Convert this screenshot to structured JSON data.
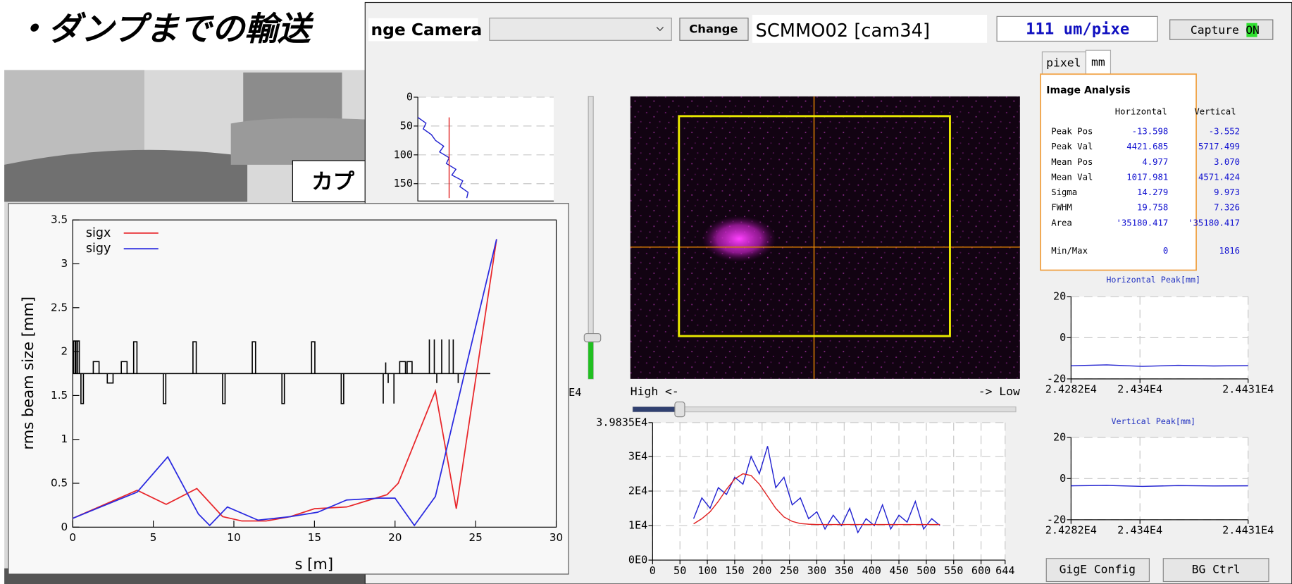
{
  "slide": {
    "title": "・ダンプまでの輸送",
    "label": "カプ"
  },
  "window": {
    "title": "nge Camera",
    "change": "Change",
    "camera": "SCMMO02 [cam34]",
    "scale": "111 um/pixe",
    "capture": "Capture",
    "capture_state": "ON",
    "tabs": [
      "pixel",
      "mm"
    ],
    "high": "High <-",
    "low": "-> Low",
    "fragment": "E4",
    "buttons": [
      "GigE Config",
      "BG Ctrl"
    ]
  },
  "analysis": {
    "title": "Image Analysis",
    "columns": [
      "Horizontal",
      "Vertical"
    ],
    "rows": [
      [
        "Peak Pos",
        "-13.598",
        "-3.552"
      ],
      [
        "Peak Val",
        "4421.685",
        "5717.499"
      ],
      [
        "Mean Pos",
        "4.977",
        "3.070"
      ],
      [
        "Mean Val",
        "1017.981",
        "4571.424"
      ],
      [
        "Sigma",
        "14.279",
        "9.973"
      ],
      [
        "FWHM",
        "19.758",
        "7.326"
      ],
      [
        "Area",
        "'35180.417",
        "'35180.417"
      ],
      [
        "Min/Max",
        "0",
        "1816"
      ]
    ]
  },
  "profile_v": {
    "type": "line",
    "orientation": "vertical",
    "y_reversed": true,
    "grid": true,
    "xlim": [
      0,
      100
    ],
    "ylim": [
      0,
      180
    ],
    "yticks": [
      0,
      50,
      100,
      150
    ],
    "y": [
      35,
      45,
      55,
      65,
      75,
      85,
      95,
      105,
      115,
      125,
      135,
      145,
      155,
      165,
      175
    ],
    "series": [
      {
        "color": "#2020d0",
        "values": [
          0,
          6,
          4,
          10,
          13,
          19,
          16,
          23,
          21,
          28,
          25,
          33,
          31,
          37,
          36
        ]
      },
      {
        "color": "#e02020",
        "values": [
          23,
          23,
          23,
          23,
          23,
          23,
          23,
          23,
          23,
          23,
          23,
          23,
          23,
          23,
          23
        ]
      }
    ]
  },
  "profile_h": {
    "type": "line",
    "grid": true,
    "xlim": [
      0,
      644
    ],
    "ylim": [
      0,
      39835
    ],
    "xticks": [
      0,
      50,
      100,
      150,
      200,
      250,
      300,
      350,
      400,
      450,
      500,
      550,
      600,
      644
    ],
    "yticks": [
      {
        "value": 0,
        "label": "0E0"
      },
      {
        "value": 10000,
        "label": "1E4"
      },
      {
        "value": 20000,
        "label": "2E4"
      },
      {
        "value": 30000,
        "label": "3E4"
      },
      {
        "value": 39835,
        "label": "3.9835E4"
      }
    ],
    "x": [
      75,
      90,
      105,
      120,
      135,
      150,
      165,
      180,
      195,
      210,
      225,
      240,
      255,
      270,
      285,
      300,
      315,
      330,
      345,
      360,
      375,
      390,
      405,
      420,
      435,
      450,
      465,
      480,
      495,
      510,
      525
    ],
    "series": [
      {
        "color": "#2020d0",
        "values": [
          12000,
          18000,
          15000,
          21000,
          19000,
          24000,
          22000,
          30000,
          25000,
          33000,
          21000,
          24000,
          16000,
          18000,
          12000,
          14000,
          9000,
          13000,
          10000,
          15000,
          8000,
          12000,
          10000,
          16000,
          9000,
          13000,
          11000,
          17000,
          9000,
          12000,
          10000
        ]
      },
      {
        "color": "#e02020",
        "values": [
          10500,
          12000,
          14000,
          17000,
          20500,
          23500,
          25000,
          24500,
          22000,
          18500,
          15000,
          12500,
          11200,
          10600,
          10400,
          10300,
          10300,
          10300,
          10300,
          10300,
          10300,
          10300,
          10300,
          10300,
          10300,
          10300,
          10300,
          10300,
          10300,
          10300,
          10300
        ]
      }
    ]
  },
  "peak_h": {
    "type": "line",
    "title": "Horizontal Peak[mm]",
    "grid": true,
    "xlim": [
      24282,
      24431
    ],
    "ylim": [
      -20,
      20
    ],
    "yticks": [
      20,
      0,
      -20
    ],
    "xticks": [
      {
        "value": 24282,
        "label": "2.4282E4"
      },
      {
        "value": 24340,
        "label": "2.434E4"
      },
      {
        "value": 24431,
        "label": "2.4431E4"
      }
    ],
    "x": [
      24282,
      24312,
      24342,
      24372,
      24402,
      24431
    ],
    "series": [
      {
        "color": "#2020d0",
        "values": [
          -13.6,
          -13.2,
          -13.9,
          -13.4,
          -13.7,
          -13.5
        ]
      }
    ]
  },
  "peak_v": {
    "type": "line",
    "title": "Vertical Peak[mm]",
    "grid": true,
    "xlim": [
      24282,
      24431
    ],
    "ylim": [
      -20,
      20
    ],
    "yticks": [
      20,
      0,
      -20
    ],
    "xticks": [
      {
        "value": 24282,
        "label": "2.4282E4"
      },
      {
        "value": 24340,
        "label": "2.434E4"
      },
      {
        "value": 24431,
        "label": "2.4431E4"
      }
    ],
    "x": [
      24282,
      24312,
      24342,
      24372,
      24402,
      24431
    ],
    "series": [
      {
        "color": "#2020d0",
        "values": [
          -3.5,
          -3.3,
          -3.8,
          -3.4,
          -3.6,
          -3.5
        ]
      }
    ]
  },
  "chart_data": {
    "type": "line",
    "x_label": "s [m]",
    "y_label": "rms beam size [mm]",
    "grid": false,
    "legend": "upper left",
    "xlim": [
      0,
      30
    ],
    "ylim": [
      0,
      3.5
    ],
    "xticks": [
      0,
      5,
      10,
      15,
      20,
      25,
      30
    ],
    "yticks": [
      0,
      0.5,
      1,
      1.5,
      2,
      2.5,
      3,
      3.5
    ],
    "series": [
      {
        "name": "sigx",
        "color": "#e8262a",
        "x": [
          0,
          4,
          5.8,
          7.7,
          9.3,
          10.5,
          12,
          13.5,
          15,
          17,
          19.5,
          20.2,
          22.5,
          23.8,
          26.3
        ],
        "values": [
          0.1,
          0.42,
          0.26,
          0.44,
          0.12,
          0.07,
          0.07,
          0.12,
          0.21,
          0.23,
          0.37,
          0.5,
          1.55,
          0.21,
          3.28
        ]
      },
      {
        "name": "sigy",
        "color": "#2a2ae0",
        "x": [
          0,
          4,
          5.9,
          7.8,
          8.5,
          9.6,
          11.5,
          13.5,
          15.2,
          17,
          19,
          20,
          21.2,
          22.5,
          24.5,
          26.3
        ],
        "values": [
          0.1,
          0.4,
          0.8,
          0.15,
          0.02,
          0.23,
          0.08,
          0.12,
          0.17,
          0.31,
          0.33,
          0.33,
          0.02,
          0.35,
          1.9,
          3.28
        ]
      }
    ]
  }
}
